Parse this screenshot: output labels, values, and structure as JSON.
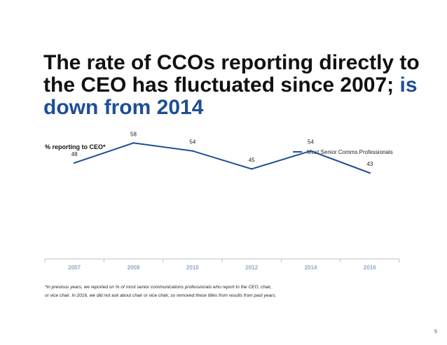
{
  "slide": {
    "title_main": "The rate of CCOs reporting directly to the CEO has fluctuated since 2007;",
    "title_accent": "is down from 2014",
    "footnote_line1": "*In previous years, we reported on % of most senior communications professionals who report to the CEO, chair,",
    "footnote_line2": "or vice chair. In 2016, we did not ask about chair or vice chair, so removed these titles from results from past years.",
    "page_number": "5"
  },
  "colors": {
    "accent": "#1f4e96",
    "axis_tick_label": "#8fa8c9",
    "axis_line": "#bfbfbf"
  },
  "chart_data": {
    "type": "line",
    "title": "% reporting to CEO*",
    "categories": [
      "2007",
      "2008",
      "2010",
      "2012",
      "2014",
      "2016"
    ],
    "series": [
      {
        "name": "Most Senior Comms Professionals",
        "values": [
          48,
          58,
          54,
          45,
          54,
          43
        ]
      }
    ],
    "data_labels": [
      "48",
      "58",
      "54",
      "45",
      "54",
      "43"
    ],
    "xlabel": "",
    "ylabel": "",
    "ylim": [
      0,
      70
    ],
    "grid": false,
    "legend": "top-right"
  }
}
